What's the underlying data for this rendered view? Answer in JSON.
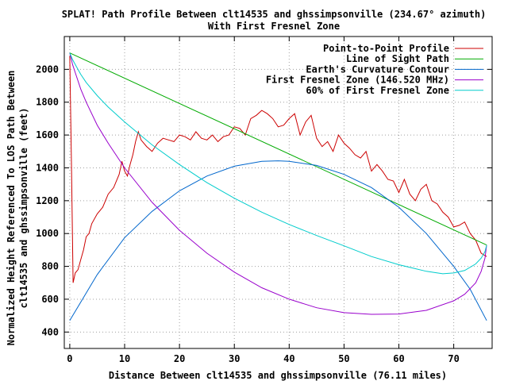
{
  "chart_data": {
    "type": "line",
    "title": "SPLAT! Path Profile Between clt14535 and ghssimpsonville (234.67° azimuth)",
    "subtitle": "With First Fresnel Zone",
    "xlabel": "Distance Between clt14535 and ghssimpsonville (76.11 miles)",
    "ylabel_line1": "Normalized Height Referenced To LOS Path Between",
    "ylabel_line2": "clt14535 and ghssimpsonville (feet)",
    "xlim": [
      -1,
      77
    ],
    "ylim": [
      300,
      2200
    ],
    "x_ticks": [
      0,
      10,
      20,
      30,
      40,
      50,
      60,
      70
    ],
    "y_ticks": [
      400,
      600,
      800,
      1000,
      1200,
      1400,
      1600,
      1800,
      2000
    ],
    "grid": true,
    "legend_position": "top-right",
    "series": [
      {
        "name": "Point-to-Point Profile",
        "color": "#cc0000",
        "x": [
          0,
          0.3,
          0.6,
          1,
          1.5,
          2,
          2.5,
          3,
          3.5,
          4,
          5,
          6,
          7,
          8,
          9,
          9.5,
          10,
          10.5,
          11,
          11.5,
          12,
          12.5,
          13,
          14,
          15,
          16,
          17,
          18,
          19,
          20,
          21,
          22,
          23,
          24,
          25,
          26,
          27,
          28,
          29,
          30,
          31,
          32,
          33,
          34,
          35,
          36,
          37,
          38,
          39,
          40,
          41,
          42,
          43,
          44,
          45,
          46,
          47,
          48,
          49,
          50,
          51,
          52,
          53,
          54,
          55,
          56,
          57,
          58,
          59,
          60,
          61,
          62,
          63,
          64,
          65,
          66,
          67,
          68,
          69,
          70,
          71,
          72,
          73,
          74,
          75,
          76
        ],
        "y": [
          2080,
          1430,
          700,
          760,
          780,
          840,
          900,
          980,
          1000,
          1060,
          1120,
          1160,
          1240,
          1280,
          1360,
          1440,
          1380,
          1350,
          1420,
          1480,
          1560,
          1620,
          1570,
          1530,
          1500,
          1550,
          1580,
          1570,
          1560,
          1600,
          1590,
          1570,
          1620,
          1580,
          1570,
          1600,
          1560,
          1590,
          1600,
          1650,
          1640,
          1600,
          1700,
          1720,
          1750,
          1730,
          1700,
          1650,
          1660,
          1700,
          1730,
          1600,
          1680,
          1720,
          1580,
          1530,
          1560,
          1500,
          1600,
          1550,
          1520,
          1480,
          1460,
          1500,
          1380,
          1420,
          1380,
          1330,
          1320,
          1250,
          1330,
          1240,
          1200,
          1270,
          1300,
          1200,
          1180,
          1130,
          1100,
          1040,
          1050,
          1070,
          1000,
          960,
          880,
          860
        ]
      },
      {
        "name": "Line of Sight Path",
        "color": "#00aa00",
        "x": [
          0,
          76
        ],
        "y": [
          2100,
          930
        ]
      },
      {
        "name": "Earth's Curvature Contour",
        "color": "#0066cc",
        "x": [
          0,
          5,
          10,
          15,
          20,
          25,
          30,
          35,
          38,
          40,
          45,
          50,
          55,
          60,
          65,
          70,
          73,
          76
        ],
        "y": [
          470,
          750,
          975,
          1135,
          1260,
          1350,
          1410,
          1440,
          1443,
          1440,
          1415,
          1360,
          1280,
          1160,
          1000,
          800,
          660,
          470
        ]
      },
      {
        "name": "First Fresnel Zone (146.520 MHz)",
        "color": "#9900cc",
        "x": [
          0,
          0.5,
          1,
          2,
          3,
          5,
          7,
          10,
          15,
          20,
          25,
          30,
          35,
          40,
          45,
          50,
          55,
          60,
          65,
          70,
          72,
          74,
          75,
          75.7,
          76
        ],
        "y": [
          2100,
          2030,
          1980,
          1880,
          1800,
          1660,
          1550,
          1400,
          1190,
          1020,
          880,
          765,
          670,
          600,
          548,
          518,
          508,
          510,
          532,
          590,
          630,
          700,
          770,
          850,
          930
        ]
      },
      {
        "name": "60% of First Fresnel Zone",
        "color": "#00cccc",
        "x": [
          0,
          0.5,
          1,
          2,
          3,
          5,
          7,
          10,
          15,
          20,
          25,
          30,
          35,
          40,
          45,
          50,
          55,
          60,
          65,
          68,
          70,
          72,
          74,
          75,
          75.7,
          76
        ],
        "y": [
          2100,
          2060,
          2030,
          1970,
          1920,
          1840,
          1770,
          1680,
          1540,
          1420,
          1310,
          1215,
          1130,
          1055,
          988,
          925,
          860,
          810,
          770,
          755,
          760,
          775,
          815,
          850,
          890,
          930
        ]
      }
    ]
  }
}
